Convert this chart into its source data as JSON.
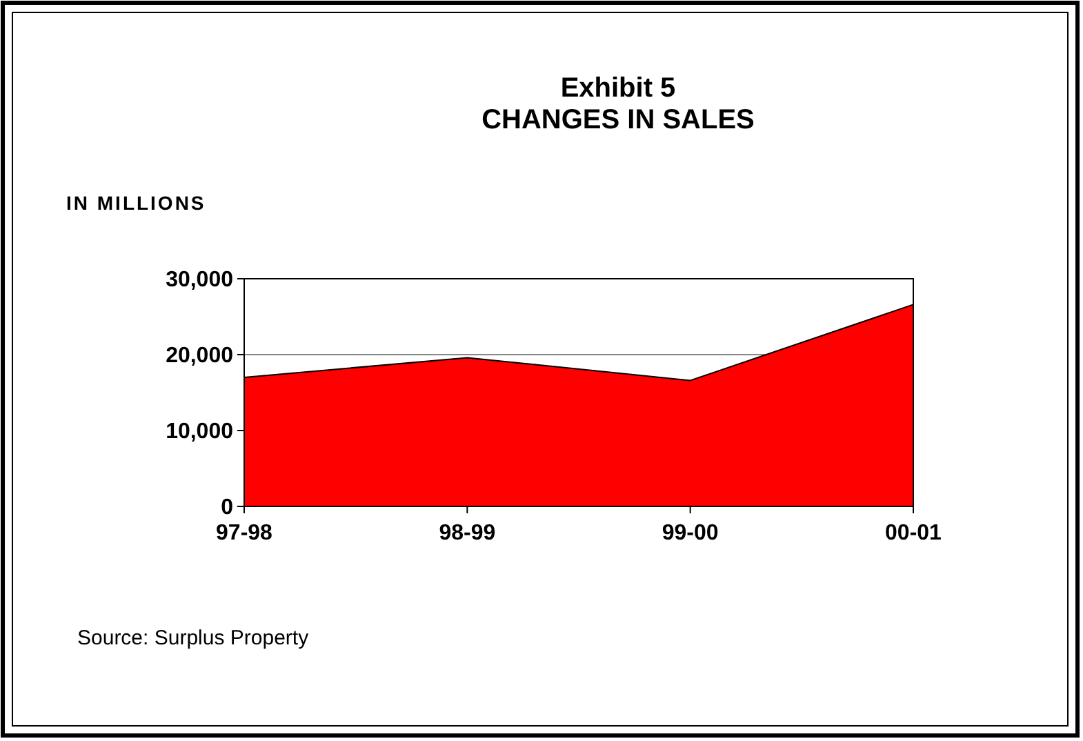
{
  "chart_data": {
    "type": "area",
    "title": "Exhibit 5\nCHANGES IN SALES",
    "ylabel": "IN MILLIONS",
    "categories": [
      "97-98",
      "98-99",
      "99-00",
      "00-01"
    ],
    "values": [
      17000,
      19600,
      16600,
      26600
    ],
    "color": "#ff0000",
    "ylim": [
      0,
      30000
    ],
    "yticks": [
      {
        "value": 0,
        "label": "0"
      },
      {
        "value": 10000,
        "label": "10,000"
      },
      {
        "value": 20000,
        "label": "20,000"
      },
      {
        "value": 30000,
        "label": "30,000"
      }
    ],
    "grid": "y",
    "annotations": [
      "Source: Surplus Property"
    ]
  }
}
